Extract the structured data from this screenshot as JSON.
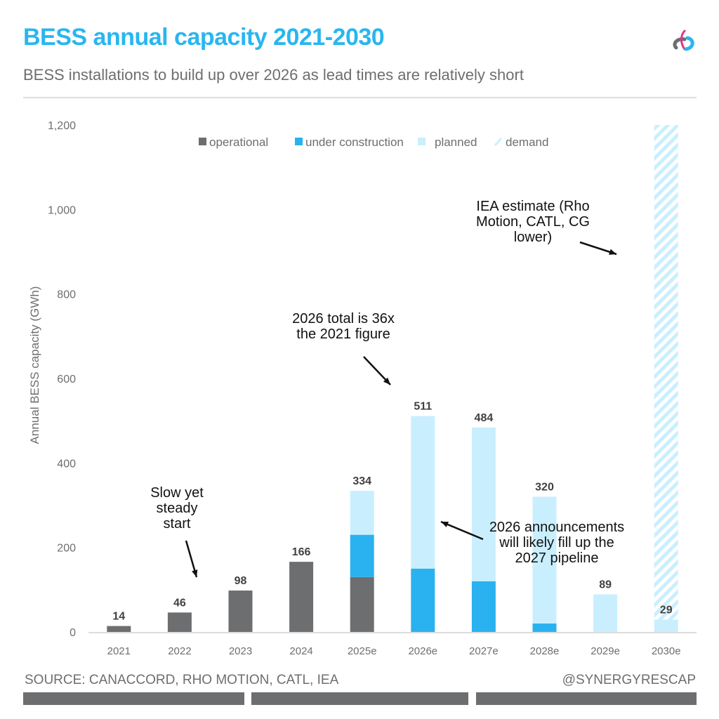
{
  "header": {
    "title": "BESS annual capacity 2021-2030",
    "subtitle": "BESS installations to build up over 2026 as lead times are relatively short",
    "logo_icon": "tri-color-loop-logo-icon"
  },
  "footer": {
    "source": "SOURCE: CANACCORD, RHO MOTION, CATL, IEA",
    "handle": "@SYNERGYRESCAP"
  },
  "colors": {
    "title": "#29b6f0",
    "operational": "#6d6e70",
    "under_construction": "#29b2ef",
    "planned": "#c9efff",
    "demand": "#c9efff",
    "text_gray": "#6d6e70",
    "label_dark": "#414042"
  },
  "chart_data": {
    "type": "bar",
    "stacked": true,
    "title": "BESS annual capacity 2021-2030",
    "xlabel": "",
    "ylabel": "Annual BESS capacity (GWh)",
    "ylim": [
      0,
      1200
    ],
    "yticks": [
      0,
      200,
      400,
      600,
      800,
      1000,
      1200
    ],
    "ytick_labels": [
      "0",
      "200",
      "400",
      "600",
      "800",
      "1,000",
      "1,200"
    ],
    "grid": false,
    "legend_position": "top-center",
    "categories": [
      "2021",
      "2022",
      "2023",
      "2024",
      "2025e",
      "2026e",
      "2027e",
      "2028e",
      "2029e",
      "2030e"
    ],
    "series": [
      {
        "name": "operational",
        "values": [
          14,
          46,
          98,
          166,
          130,
          0,
          0,
          0,
          0,
          0
        ]
      },
      {
        "name": "under construction",
        "values": [
          0,
          0,
          0,
          0,
          100,
          150,
          120,
          20,
          0,
          0
        ]
      },
      {
        "name": "planned",
        "values": [
          0,
          0,
          0,
          0,
          104,
          361,
          364,
          300,
          89,
          29
        ]
      },
      {
        "name": "demand",
        "values": [
          0,
          0,
          0,
          0,
          0,
          0,
          0,
          0,
          0,
          1171
        ],
        "pattern": "hatched"
      }
    ],
    "totals": [
      14,
      46,
      98,
      166,
      334,
      511,
      484,
      320,
      89,
      29
    ],
    "total_labels": [
      "14",
      "46",
      "98",
      "166",
      "334",
      "511",
      "484",
      "320",
      "89",
      "29"
    ],
    "annotations": [
      {
        "lines": [
          "Slow yet",
          "steady",
          "start"
        ],
        "target": "2022"
      },
      {
        "lines": [
          "2026 total is 36x",
          "the 2021 figure"
        ],
        "target": "2026e"
      },
      {
        "lines": [
          "2026 announcements",
          "will likely fill up the",
          "2027 pipeline"
        ],
        "target": "2026e"
      },
      {
        "lines": [
          "IEA estimate (Rho",
          "Motion, CATL, CG",
          "lower)"
        ],
        "target": "2030e"
      }
    ]
  }
}
